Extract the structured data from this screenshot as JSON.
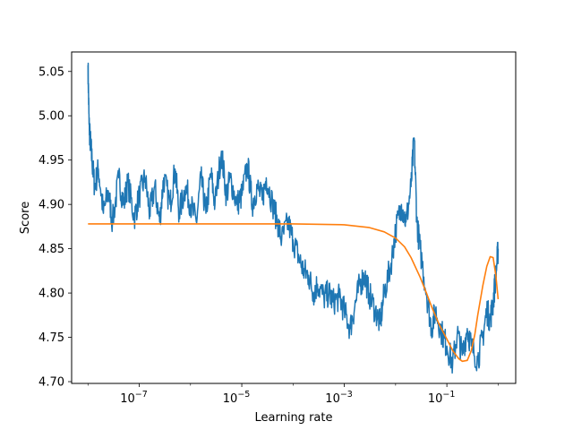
{
  "chart_data": {
    "type": "line",
    "title": "",
    "xlabel": "Learning rate",
    "ylabel": "Score",
    "xscale": "log",
    "xlim": [
      4.8e-09,
      2.2
    ],
    "ylim": [
      4.698,
      5.072
    ],
    "grid": false,
    "legend": "none",
    "x_ticks": [
      {
        "value": 1e-07,
        "base": "10",
        "exp": "−7"
      },
      {
        "value": 1e-05,
        "base": "10",
        "exp": "−5"
      },
      {
        "value": 0.001,
        "base": "10",
        "exp": "−3"
      },
      {
        "value": 0.1,
        "base": "10",
        "exp": "−1"
      }
    ],
    "y_ticks": [
      {
        "value": 4.7,
        "label": "4.70"
      },
      {
        "value": 4.75,
        "label": "4.75"
      },
      {
        "value": 4.8,
        "label": "4.80"
      },
      {
        "value": 4.85,
        "label": "4.85"
      },
      {
        "value": 4.9,
        "label": "4.90"
      },
      {
        "value": 4.95,
        "label": "4.95"
      },
      {
        "value": 5.0,
        "label": "5.00"
      },
      {
        "value": 5.05,
        "label": "5.05"
      }
    ],
    "series": [
      {
        "color": "#1f77b4",
        "x": [
          1e-08,
          1.05e-08,
          1.1e-08,
          1.2e-08,
          1.35e-08,
          1.6e-08,
          2e-08,
          2.5e-08,
          3e-08,
          4e-08,
          5e-08,
          6e-08,
          8e-08,
          1e-07,
          1.3e-07,
          1.6e-07,
          2e-07,
          2.5e-07,
          3e-07,
          4e-07,
          5e-07,
          6e-07,
          8e-07,
          1e-06,
          1.3e-06,
          1.6e-06,
          2e-06,
          2.5e-06,
          3e-06,
          4e-06,
          5e-06,
          6e-06,
          8e-06,
          1e-05,
          1.3e-05,
          1.6e-05,
          2e-05,
          2.5e-05,
          3e-05,
          4e-05,
          5e-05,
          6e-05,
          8e-05,
          0.0001,
          0.00013,
          0.00016,
          0.0002,
          0.00025,
          0.0003,
          0.0004,
          0.0005,
          0.0006,
          0.0008,
          0.001,
          0.0013,
          0.0016,
          0.002,
          0.0025,
          0.003,
          0.004,
          0.005,
          0.006,
          0.008,
          0.01,
          0.013,
          0.016,
          0.02,
          0.023,
          0.026,
          0.03,
          0.04,
          0.05,
          0.06,
          0.08,
          0.1,
          0.13,
          0.16,
          0.2,
          0.25,
          0.3,
          0.4,
          0.5,
          0.6,
          0.7,
          0.8,
          0.9,
          1.0
        ],
        "y": [
          5.057,
          4.99,
          4.975,
          4.95,
          4.92,
          4.94,
          4.89,
          4.915,
          4.88,
          4.93,
          4.9,
          4.925,
          4.885,
          4.91,
          4.93,
          4.89,
          4.92,
          4.88,
          4.93,
          4.9,
          4.94,
          4.89,
          4.92,
          4.9,
          4.88,
          4.93,
          4.89,
          4.935,
          4.9,
          4.96,
          4.91,
          4.93,
          4.9,
          4.91,
          4.945,
          4.9,
          4.92,
          4.905,
          4.93,
          4.9,
          4.88,
          4.86,
          4.88,
          4.86,
          4.84,
          4.825,
          4.82,
          4.8,
          4.81,
          4.795,
          4.8,
          4.79,
          4.795,
          4.78,
          4.76,
          4.785,
          4.81,
          4.82,
          4.8,
          4.78,
          4.765,
          4.8,
          4.83,
          4.87,
          4.9,
          4.88,
          4.92,
          4.975,
          4.88,
          4.85,
          4.8,
          4.76,
          4.78,
          4.755,
          4.74,
          4.72,
          4.755,
          4.73,
          4.76,
          4.74,
          4.725,
          4.75,
          4.78,
          4.77,
          4.79,
          4.82,
          4.85
        ]
      },
      {
        "color": "#ff7f0e",
        "x": [
          1e-08,
          1e-07,
          1e-06,
          1e-05,
          0.0001,
          0.001,
          0.003,
          0.006,
          0.01,
          0.015,
          0.02,
          0.03,
          0.04,
          0.05,
          0.07,
          0.1,
          0.13,
          0.17,
          0.2,
          0.25,
          0.3,
          0.35,
          0.4,
          0.5,
          0.6,
          0.7,
          0.8,
          0.9,
          1.0
        ],
        "y": [
          4.878,
          4.878,
          4.878,
          4.878,
          4.878,
          4.877,
          4.874,
          4.869,
          4.862,
          4.852,
          4.84,
          4.818,
          4.8,
          4.785,
          4.765,
          4.748,
          4.735,
          4.726,
          4.723,
          4.724,
          4.735,
          4.753,
          4.775,
          4.808,
          4.83,
          4.841,
          4.84,
          4.82,
          4.793
        ]
      }
    ]
  }
}
